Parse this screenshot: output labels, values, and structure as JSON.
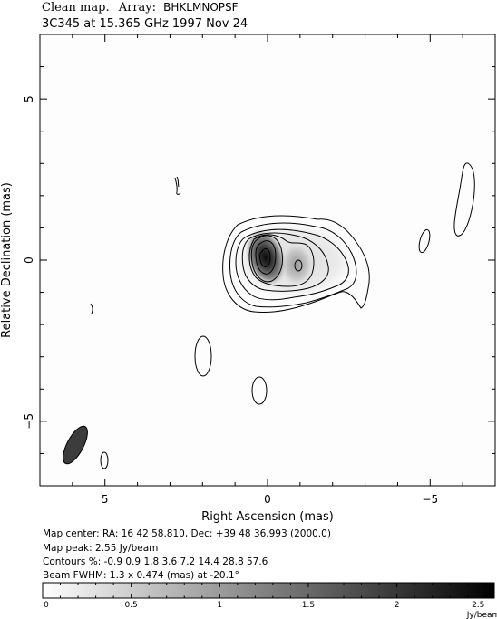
{
  "header": {
    "title_prefix": "Clean map.",
    "array_label": "Array:",
    "array_value": "BHKLMNOPSF",
    "subtitle": "3C345 at 15.365 GHz 1997 Nov 24"
  },
  "chart_data": {
    "type": "heatmap",
    "xlabel": "Right Ascension  (mas)",
    "ylabel": "Relative Declination  (mas)",
    "xlim": [
      7,
      -7
    ],
    "ylim": [
      -7,
      7
    ],
    "xticks": [
      5,
      0,
      -5
    ],
    "yticks": [
      5,
      0,
      -5
    ],
    "colorbar": {
      "ticks": [
        "0",
        "0.5",
        "1",
        "1.5",
        "2",
        "2.5"
      ],
      "range": [
        0,
        2.55
      ],
      "unit": "Jy/beam"
    },
    "peak_position": [
      0,
      0
    ],
    "secondary_component": [
      -1.0,
      -0.2
    ],
    "contour_levels_percent": [
      -0.9,
      0.9,
      1.8,
      3.6,
      7.2,
      14.4,
      28.8,
      57.6
    ],
    "beam": {
      "major_mas": 1.3,
      "minor_mas": 0.474,
      "pa_deg": -20.1
    }
  },
  "info": {
    "map_center": "Map center:  RA: 16 42 58.810,  Dec: +39 48 36.993 (2000.0)",
    "map_peak": "Map peak: 2.55 Jy/beam",
    "contours": "Contours %: -0.9 0.9 1.8 3.6 7.2 14.4 28.8 57.6",
    "beam": "Beam FWHM: 1.3 x 0.474 (mas) at -20.1°"
  }
}
